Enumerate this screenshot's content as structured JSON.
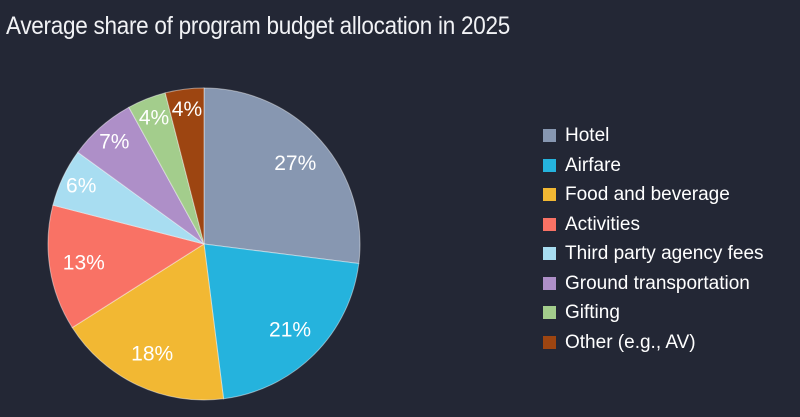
{
  "window": {
    "background_color": "#232735",
    "title_color": "#f1f2f5",
    "slice_label_color": "#ffffff"
  },
  "chart_data": {
    "type": "pie",
    "title": "Average share of program budget allocation in 2025",
    "unit": "percent",
    "direction": "clockwise",
    "start_angle_deg": 0,
    "legend_position": "right",
    "categories": [
      "Hotel",
      "Airfare",
      "Food and beverage",
      "Activities",
      "Third party agency fees",
      "Ground transportation",
      "Gifting",
      "Other (e.g., AV)"
    ],
    "values": [
      27,
      21,
      18,
      13,
      6,
      7,
      4,
      4
    ],
    "slice_labels": [
      "27%",
      "21%",
      "18%",
      "13%",
      "6%",
      "7%",
      "4%",
      "4%"
    ],
    "colors": [
      "#8797b1",
      "#25b3dd",
      "#f2b833",
      "#f97265",
      "#a8ddf1",
      "#ae8fc8",
      "#a3cd8c",
      "#9d4511"
    ]
  }
}
